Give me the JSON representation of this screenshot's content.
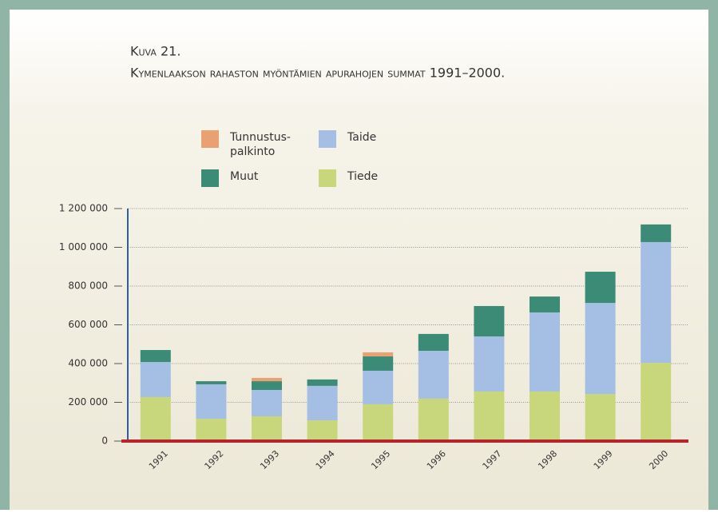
{
  "chart_data": {
    "type": "stacked_bar",
    "title": "Kuva 21.",
    "subtitle": "Kymenlaakson rahaston myöntämien apurahojen summat 1991–2000.",
    "categories": [
      "1991",
      "1992",
      "1993",
      "1994",
      "1995",
      "1996",
      "1997",
      "1998",
      "1999",
      "2000"
    ],
    "series": [
      {
        "name": "Tiede",
        "color": "#c9d77c",
        "values": [
          227000,
          115000,
          128000,
          107000,
          190000,
          219000,
          256000,
          256000,
          243000,
          404000
        ]
      },
      {
        "name": "Taide",
        "color": "#a4bee4",
        "values": [
          181000,
          178000,
          136000,
          178000,
          173000,
          247000,
          284000,
          408000,
          470000,
          623000
        ]
      },
      {
        "name": "Muut",
        "color": "#3b8b77",
        "values": [
          62000,
          16000,
          45000,
          33000,
          74000,
          87000,
          157000,
          82000,
          161000,
          91000
        ]
      },
      {
        "name": "Tunnustus-palkinto",
        "color": "#e9a072",
        "values": [
          0,
          0,
          17000,
          0,
          21000,
          0,
          0,
          0,
          0,
          0
        ]
      }
    ],
    "ylim": [
      0,
      1200000
    ],
    "yticks": [
      0,
      {
        "value": 200000,
        "label": "200 000"
      },
      {
        "value": 400000,
        "label": "400 000"
      },
      {
        "value": 600000,
        "label": "600 000"
      },
      {
        "value": 800000,
        "label": "800 000"
      },
      {
        "value": 1000000,
        "label": "1 000 000"
      },
      {
        "value": 1200000,
        "label": "1 200 000"
      }
    ],
    "grid": true
  }
}
